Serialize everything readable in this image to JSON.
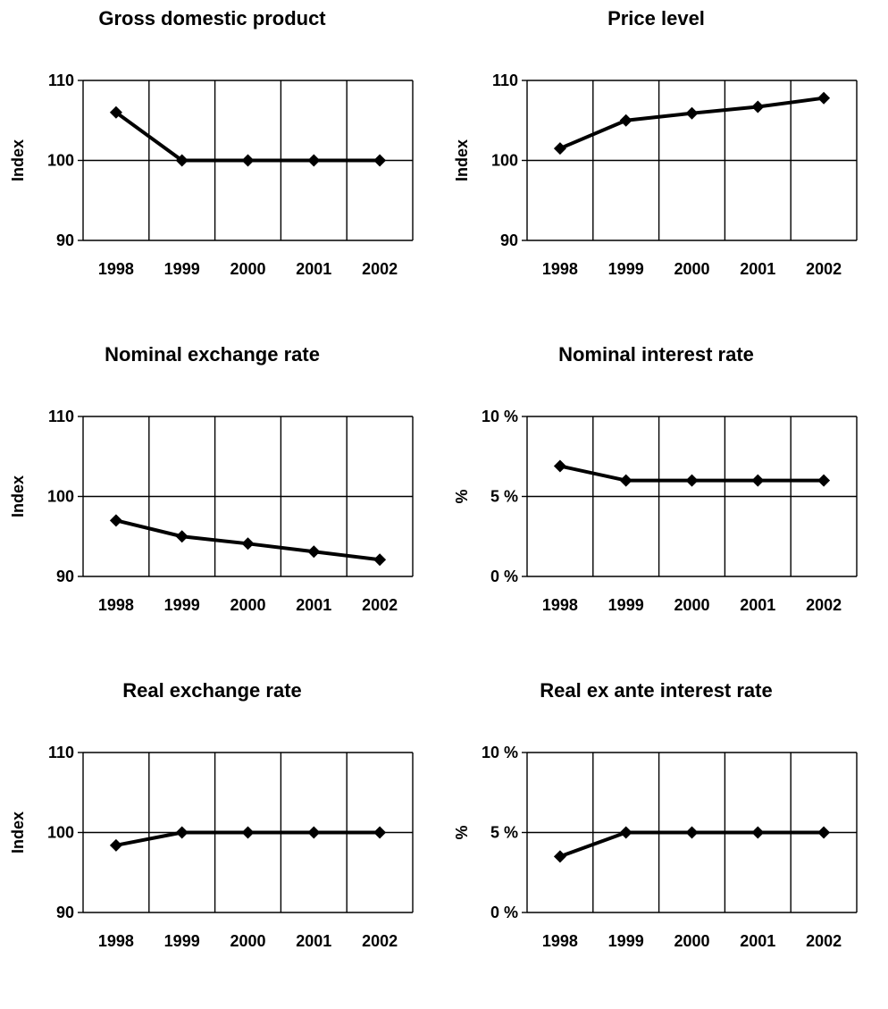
{
  "chart_data": [
    {
      "type": "line",
      "title": "Gross domestic product",
      "ylabel": "Index",
      "categories": [
        "1998",
        "1999",
        "2000",
        "2001",
        "2002"
      ],
      "values": [
        106,
        100,
        100,
        100,
        100
      ],
      "ylim": [
        90,
        110
      ],
      "yticks": [
        90,
        100,
        110
      ],
      "ytick_labels": [
        "90",
        "100",
        "110"
      ],
      "grid": true
    },
    {
      "type": "line",
      "title": "Price level",
      "ylabel": "Index",
      "categories": [
        "1998",
        "1999",
        "2000",
        "2001",
        "2002"
      ],
      "values": [
        101.5,
        105,
        105.9,
        106.7,
        107.8
      ],
      "ylim": [
        90,
        110
      ],
      "yticks": [
        90,
        100,
        110
      ],
      "ytick_labels": [
        "90",
        "100",
        "110"
      ],
      "grid": true
    },
    {
      "type": "line",
      "title": "Nominal exchange rate",
      "ylabel": "Index",
      "categories": [
        "1998",
        "1999",
        "2000",
        "2001",
        "2002"
      ],
      "values": [
        97,
        95,
        94.1,
        93.1,
        92.1
      ],
      "ylim": [
        90,
        110
      ],
      "yticks": [
        90,
        100,
        110
      ],
      "ytick_labels": [
        "90",
        "100",
        "110"
      ],
      "grid": true
    },
    {
      "type": "line",
      "title": "Nominal interest rate",
      "ylabel": "%",
      "categories": [
        "1998",
        "1999",
        "2000",
        "2001",
        "2002"
      ],
      "values": [
        6.9,
        6,
        6,
        6,
        6
      ],
      "ylim": [
        0,
        10
      ],
      "yticks": [
        0,
        5,
        10
      ],
      "ytick_labels": [
        "0 %",
        "5 %",
        "10 %"
      ],
      "grid": true
    },
    {
      "type": "line",
      "title": "Real exchange rate",
      "ylabel": "Index",
      "categories": [
        "1998",
        "1999",
        "2000",
        "2001",
        "2002"
      ],
      "values": [
        98.4,
        100,
        100,
        100,
        100
      ],
      "ylim": [
        90,
        110
      ],
      "yticks": [
        90,
        100,
        110
      ],
      "ytick_labels": [
        "90",
        "100",
        "110"
      ],
      "grid": true
    },
    {
      "type": "line",
      "title": "Real ex ante interest rate",
      "ylabel": "%",
      "categories": [
        "1998",
        "1999",
        "2000",
        "2001",
        "2002"
      ],
      "values": [
        3.5,
        5,
        5,
        5,
        5
      ],
      "ylim": [
        0,
        10
      ],
      "yticks": [
        0,
        5,
        10
      ],
      "ytick_labels": [
        "0 %",
        "5 %",
        "10 %"
      ],
      "grid": true
    }
  ]
}
